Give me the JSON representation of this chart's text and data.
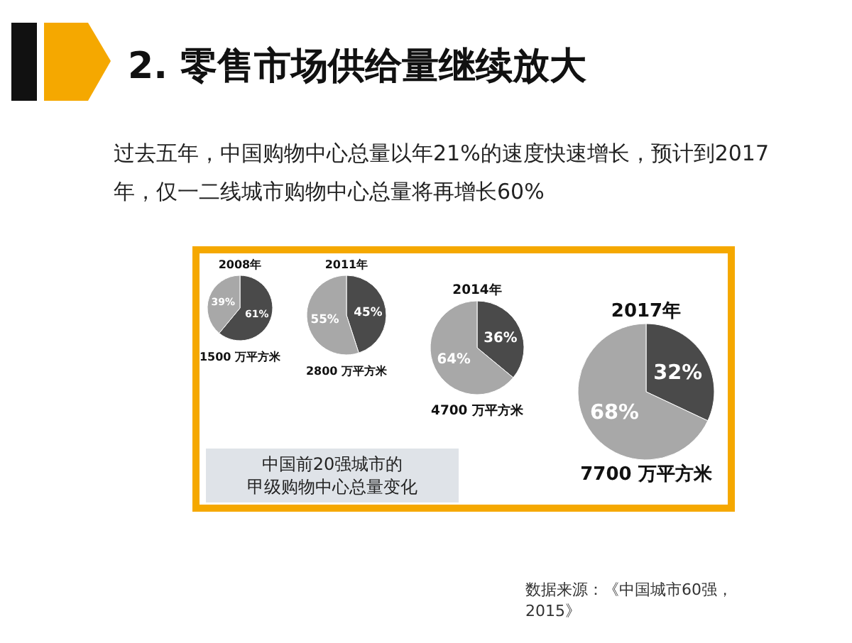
{
  "chart_data": [
    {
      "type": "other",
      "title": "2. 零售市场供给量继续放大",
      "subtitle": "过去五年，中国购物中心总量以年21%的速度快速增长，预计到2017年，仅一二线城市购物中心总量将再增长60%",
      "annotations": [
        "中国前20强城市的甲级购物中心总量变化",
        "数据来源：《中国城市60强，2015》"
      ]
    },
    {
      "type": "pie",
      "title": "2008年",
      "categories": [
        null,
        null
      ],
      "values": [
        61,
        39
      ],
      "colors": [
        "#4a4a4a",
        "#a8a8a8"
      ],
      "value_labels": [
        "61%",
        "39%"
      ],
      "annotations": [
        "1500 万平方米"
      ]
    },
    {
      "type": "pie",
      "title": "2011年",
      "categories": [
        null,
        null
      ],
      "values": [
        45,
        55
      ],
      "colors": [
        "#4a4a4a",
        "#a8a8a8"
      ],
      "value_labels": [
        "45%",
        "55%"
      ],
      "annotations": [
        "2800 万平方米"
      ]
    },
    {
      "type": "pie",
      "title": "2014年",
      "categories": [
        null,
        null
      ],
      "values": [
        36,
        64
      ],
      "colors": [
        "#4a4a4a",
        "#a8a8a8"
      ],
      "value_labels": [
        "36%",
        "64%"
      ],
      "annotations": [
        "4700 万平方米"
      ]
    },
    {
      "type": "pie",
      "title": "2017年",
      "categories": [
        null,
        null
      ],
      "values": [
        32,
        68
      ],
      "colors": [
        "#4a4a4a",
        "#a8a8a8"
      ],
      "value_labels": [
        "32%",
        "68%"
      ],
      "annotations": [
        "7700 万平方米"
      ]
    }
  ]
}
